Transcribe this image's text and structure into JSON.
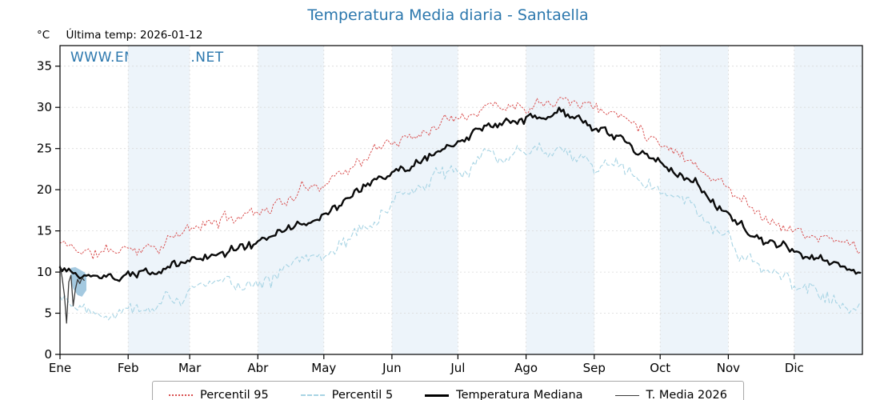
{
  "header": {
    "unit_label": "°C",
    "last_temp_label": "Última temp: 2026-01-12"
  },
  "watermark": {
    "text": "WWW.EMBALSES.NET"
  },
  "chart_data": {
    "type": "line",
    "title": "Temperatura Media diaria - Santaella",
    "xlabel": "",
    "ylabel": "°C",
    "ylim": [
      0,
      37.5
    ],
    "y_ticks": [
      0,
      5,
      10,
      15,
      20,
      25,
      30,
      35
    ],
    "x_tick_labels": [
      "Ene",
      "Feb",
      "Mar",
      "Abr",
      "May",
      "Jun",
      "Jul",
      "Ago",
      "Sep",
      "Oct",
      "Nov",
      "Dic"
    ],
    "month_start_days": [
      0,
      31,
      59,
      90,
      120,
      151,
      181,
      212,
      243,
      273,
      304,
      334
    ],
    "days_in_year": 365,
    "grid": true,
    "legend_position": "bottom-center",
    "shaded_months": [
      1,
      3,
      5,
      7,
      9,
      11
    ],
    "band_color": "#edf4fa",
    "anchor_days": [
      0,
      15,
      31,
      46,
      59,
      74,
      90,
      105,
      120,
      135,
      151,
      166,
      181,
      196,
      212,
      227,
      243,
      258,
      273,
      288,
      304,
      319,
      334,
      349,
      364
    ],
    "series": [
      {
        "name": "Percentil 95",
        "style": "dotted",
        "color": "#d94f4f",
        "width": 1.0,
        "noise": 1.0,
        "seed": 11,
        "anchor_values": [
          13.5,
          12.2,
          12.8,
          13.6,
          15.0,
          16.3,
          17.6,
          19.0,
          21.3,
          23.3,
          25.8,
          27.3,
          29.6,
          30.4,
          30.6,
          31.8,
          30.2,
          28.6,
          26.2,
          23.6,
          20.2,
          17.2,
          15.0,
          13.8,
          13.0
        ]
      },
      {
        "name": "Percentil 5",
        "style": "dashed",
        "color": "#a7d4e4",
        "width": 1.1,
        "noise": 1.3,
        "seed": 22,
        "anchor_values": [
          7.2,
          5.8,
          6.0,
          6.6,
          7.4,
          8.4,
          9.4,
          10.6,
          12.8,
          14.8,
          17.8,
          20.3,
          23.0,
          24.3,
          24.8,
          25.8,
          23.4,
          21.8,
          19.6,
          17.4,
          13.6,
          10.2,
          8.2,
          7.2,
          6.6
        ]
      },
      {
        "name": "Temperatura Mediana",
        "style": "solid",
        "color": "#0a0a0a",
        "width": 2.4,
        "noise": 0.7,
        "seed": 33,
        "anchor_values": [
          10.4,
          9.0,
          9.5,
          10.1,
          11.4,
          12.4,
          13.6,
          15.4,
          16.9,
          19.3,
          21.9,
          23.9,
          25.9,
          27.3,
          28.3,
          28.9,
          27.6,
          25.6,
          23.2,
          21.0,
          17.2,
          13.8,
          12.1,
          11.2,
          10.0
        ]
      },
      {
        "name": "T. Media 2026",
        "style": "solid",
        "color": "#3a3a3a",
        "width": 1.3,
        "daily_values": [
          10.8,
          9.3,
          7.2,
          3.8,
          8.8,
          9.6,
          5.9,
          7.9,
          9.1,
          8.6,
          9.3,
          9.0
        ]
      }
    ],
    "fill_patch": {
      "color": "#86b7d6",
      "opacity": 0.75,
      "points": [
        [
          5,
          10.5
        ],
        [
          7,
          10.6
        ],
        [
          9,
          10.3
        ],
        [
          11,
          10.0
        ],
        [
          12,
          9.7
        ],
        [
          12,
          7.8
        ],
        [
          10,
          7.0
        ],
        [
          8,
          7.2
        ],
        [
          6,
          8.0
        ],
        [
          5,
          9.0
        ]
      ]
    }
  }
}
